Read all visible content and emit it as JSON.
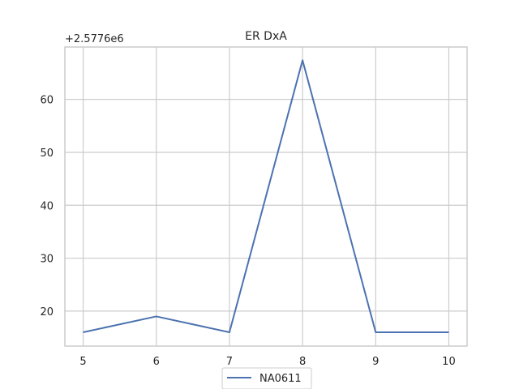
{
  "chart_data": {
    "type": "line",
    "title": "ER DxA",
    "xlabel": "",
    "ylabel": "",
    "y_offset_label": "+2.5776e6",
    "x": [
      5,
      6,
      7,
      8,
      9,
      10
    ],
    "x_ticks": [
      "5",
      "6",
      "7",
      "8",
      "9",
      "10"
    ],
    "y_ticks": [
      "20",
      "30",
      "40",
      "50",
      "60"
    ],
    "xlim": [
      4.75,
      10.25
    ],
    "ylim": [
      13.4,
      69.9
    ],
    "grid": true,
    "legend_position": "bottom-center",
    "series": [
      {
        "name": "NA0611",
        "values": [
          16,
          19,
          16,
          67.4,
          16,
          16
        ],
        "color": "#4c72b0"
      }
    ],
    "colors": {
      "grid": "#cccccc",
      "frame": "#cccccc",
      "text": "#262626"
    }
  }
}
